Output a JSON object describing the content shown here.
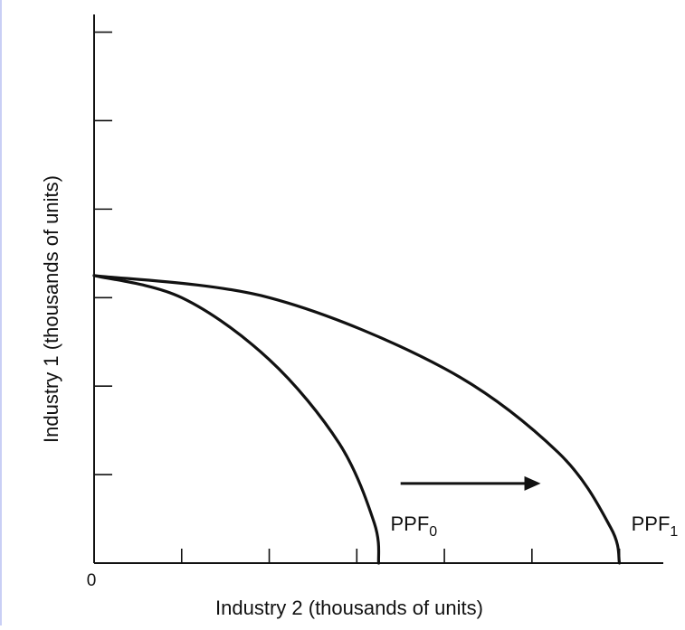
{
  "chart_data": {
    "type": "line",
    "title": "",
    "xlabel": "Industry 2 (thousands of units)",
    "ylabel": "Industry 1 (thousands of units)",
    "origin_label": "0",
    "xlim": [
      0,
      6.5
    ],
    "ylim": [
      0,
      6.2
    ],
    "x_ticks": [
      1,
      2,
      3,
      4,
      5,
      6
    ],
    "y_ticks": [
      1,
      2,
      3,
      4,
      5,
      6
    ],
    "grid": false,
    "legend": "none",
    "series": [
      {
        "label_main": "PPF",
        "label_sub": "0",
        "x_intercept": 3.25,
        "y_intercept": 3.25,
        "points": [
          [
            0,
            3.25
          ],
          [
            1.0,
            3.0
          ],
          [
            2.0,
            2.3
          ],
          [
            2.8,
            1.35
          ],
          [
            3.2,
            0.45
          ],
          [
            3.25,
            0
          ]
        ]
      },
      {
        "label_main": "PPF",
        "label_sub": "1",
        "x_intercept": 6.0,
        "y_intercept": 3.25,
        "points": [
          [
            0,
            3.25
          ],
          [
            2.0,
            3.0
          ],
          [
            4.0,
            2.2
          ],
          [
            5.3,
            1.25
          ],
          [
            5.9,
            0.4
          ],
          [
            6.0,
            0
          ]
        ]
      }
    ],
    "annotation": {
      "type": "arrow",
      "from": [
        3.5,
        0.9
      ],
      "to": [
        5.1,
        0.9
      ]
    },
    "colors": {
      "line": "#111111",
      "axis": "#111111",
      "left_rule": "#c9cff5"
    }
  }
}
